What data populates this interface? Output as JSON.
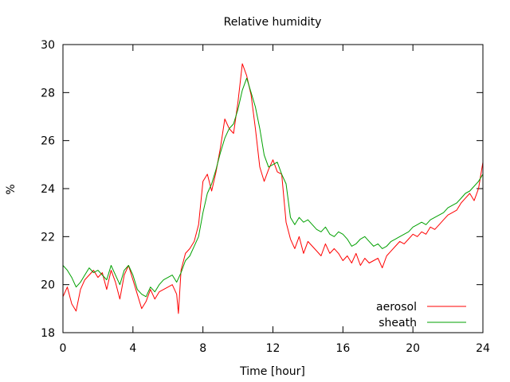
{
  "chart_data": {
    "type": "line",
    "title": "Relative humidity",
    "xlabel": "Time [hour]",
    "ylabel": "%",
    "xlim": [
      0,
      24
    ],
    "ylim": [
      18,
      30
    ],
    "x_ticks": [
      0,
      4,
      8,
      12,
      16,
      20,
      24
    ],
    "y_ticks": [
      18,
      20,
      22,
      24,
      26,
      28,
      30
    ],
    "x_tick_labels": [
      "0",
      "4",
      "8",
      "12",
      "16",
      "20",
      "24"
    ],
    "y_tick_labels": [
      "18",
      "20",
      "22",
      "24",
      "26",
      "28",
      "30"
    ],
    "grid": false,
    "legend_position": "bottom-right",
    "series": [
      {
        "name": "aerosol",
        "color": "#ff0000",
        "x": [
          0,
          0.25,
          0.5,
          0.75,
          1.0,
          1.25,
          1.5,
          1.75,
          2.0,
          2.25,
          2.5,
          2.75,
          3.0,
          3.25,
          3.5,
          3.75,
          4.0,
          4.25,
          4.5,
          4.75,
          5.0,
          5.25,
          5.5,
          5.75,
          6.0,
          6.25,
          6.5,
          6.6,
          6.75,
          7.0,
          7.25,
          7.5,
          7.75,
          8.0,
          8.25,
          8.5,
          8.75,
          9.0,
          9.25,
          9.5,
          9.75,
          10.0,
          10.25,
          10.5,
          10.75,
          11.0,
          11.25,
          11.5,
          11.75,
          12.0,
          12.25,
          12.5,
          12.75,
          13.0,
          13.25,
          13.5,
          13.75,
          14.0,
          14.25,
          14.5,
          14.75,
          15.0,
          15.25,
          15.5,
          15.75,
          16.0,
          16.25,
          16.5,
          16.75,
          17.0,
          17.25,
          17.5,
          17.75,
          18.0,
          18.25,
          18.5,
          18.75,
          19.0,
          19.25,
          19.5,
          19.75,
          20.0,
          20.25,
          20.5,
          20.75,
          21.0,
          21.25,
          21.5,
          21.75,
          22.0,
          22.25,
          22.5,
          22.75,
          23.0,
          23.25,
          23.5,
          23.75,
          24.0
        ],
        "y": [
          19.5,
          19.9,
          19.2,
          18.9,
          19.8,
          20.2,
          20.4,
          20.6,
          20.3,
          20.5,
          19.8,
          20.6,
          20.1,
          19.4,
          20.4,
          20.8,
          20.2,
          19.6,
          19.0,
          19.3,
          19.8,
          19.4,
          19.7,
          19.8,
          19.9,
          20.0,
          19.6,
          18.8,
          20.6,
          21.3,
          21.5,
          21.8,
          22.5,
          24.3,
          24.6,
          23.9,
          24.7,
          25.7,
          26.9,
          26.5,
          26.3,
          27.6,
          29.2,
          28.7,
          27.9,
          26.5,
          24.9,
          24.3,
          24.8,
          25.2,
          24.7,
          24.6,
          22.6,
          21.9,
          21.5,
          22.0,
          21.3,
          21.8,
          21.6,
          21.4,
          21.2,
          21.7,
          21.3,
          21.5,
          21.3,
          21.0,
          21.2,
          20.9,
          21.3,
          20.8,
          21.1,
          20.9,
          21.0,
          21.1,
          20.7,
          21.2,
          21.4,
          21.6,
          21.8,
          21.7,
          21.9,
          22.1,
          22.0,
          22.2,
          22.1,
          22.4,
          22.3,
          22.5,
          22.7,
          22.9,
          23.0,
          23.1,
          23.4,
          23.6,
          23.8,
          23.5,
          24.0,
          25.1
        ]
      },
      {
        "name": "sheath",
        "color": "#00a000",
        "x": [
          0,
          0.25,
          0.5,
          0.75,
          1.0,
          1.25,
          1.5,
          1.75,
          2.0,
          2.25,
          2.5,
          2.75,
          3.0,
          3.25,
          3.5,
          3.75,
          4.0,
          4.25,
          4.5,
          4.75,
          5.0,
          5.25,
          5.5,
          5.75,
          6.0,
          6.25,
          6.5,
          6.75,
          7.0,
          7.25,
          7.5,
          7.75,
          8.0,
          8.25,
          8.5,
          8.75,
          9.0,
          9.25,
          9.5,
          9.75,
          10.0,
          10.25,
          10.5,
          10.75,
          11.0,
          11.25,
          11.5,
          11.75,
          12.0,
          12.25,
          12.5,
          12.75,
          13.0,
          13.25,
          13.5,
          13.75,
          14.0,
          14.25,
          14.5,
          14.75,
          15.0,
          15.25,
          15.5,
          15.75,
          16.0,
          16.25,
          16.5,
          16.75,
          17.0,
          17.25,
          17.5,
          17.75,
          18.0,
          18.25,
          18.5,
          18.75,
          19.0,
          19.25,
          19.5,
          19.75,
          20.0,
          20.25,
          20.5,
          20.75,
          21.0,
          21.25,
          21.5,
          21.75,
          22.0,
          22.25,
          22.5,
          22.75,
          23.0,
          23.25,
          23.5,
          23.75,
          24.0
        ],
        "y": [
          20.8,
          20.6,
          20.3,
          19.9,
          20.1,
          20.4,
          20.7,
          20.5,
          20.6,
          20.4,
          20.2,
          20.8,
          20.4,
          20.0,
          20.6,
          20.8,
          20.4,
          19.8,
          19.6,
          19.5,
          19.9,
          19.7,
          20.0,
          20.2,
          20.3,
          20.4,
          20.1,
          20.5,
          21.0,
          21.2,
          21.6,
          22.0,
          23.0,
          23.8,
          24.2,
          24.8,
          25.5,
          26.1,
          26.5,
          26.7,
          27.3,
          28.1,
          28.6,
          28.0,
          27.4,
          26.5,
          25.4,
          24.9,
          25.0,
          25.1,
          24.6,
          24.2,
          22.8,
          22.5,
          22.8,
          22.6,
          22.7,
          22.5,
          22.3,
          22.2,
          22.4,
          22.1,
          22.0,
          22.2,
          22.1,
          21.9,
          21.6,
          21.7,
          21.9,
          22.0,
          21.8,
          21.6,
          21.7,
          21.5,
          21.6,
          21.8,
          21.9,
          22.0,
          22.1,
          22.2,
          22.4,
          22.5,
          22.6,
          22.5,
          22.7,
          22.8,
          22.9,
          23.0,
          23.2,
          23.3,
          23.4,
          23.6,
          23.8,
          23.9,
          24.1,
          24.3,
          24.6
        ]
      }
    ]
  }
}
